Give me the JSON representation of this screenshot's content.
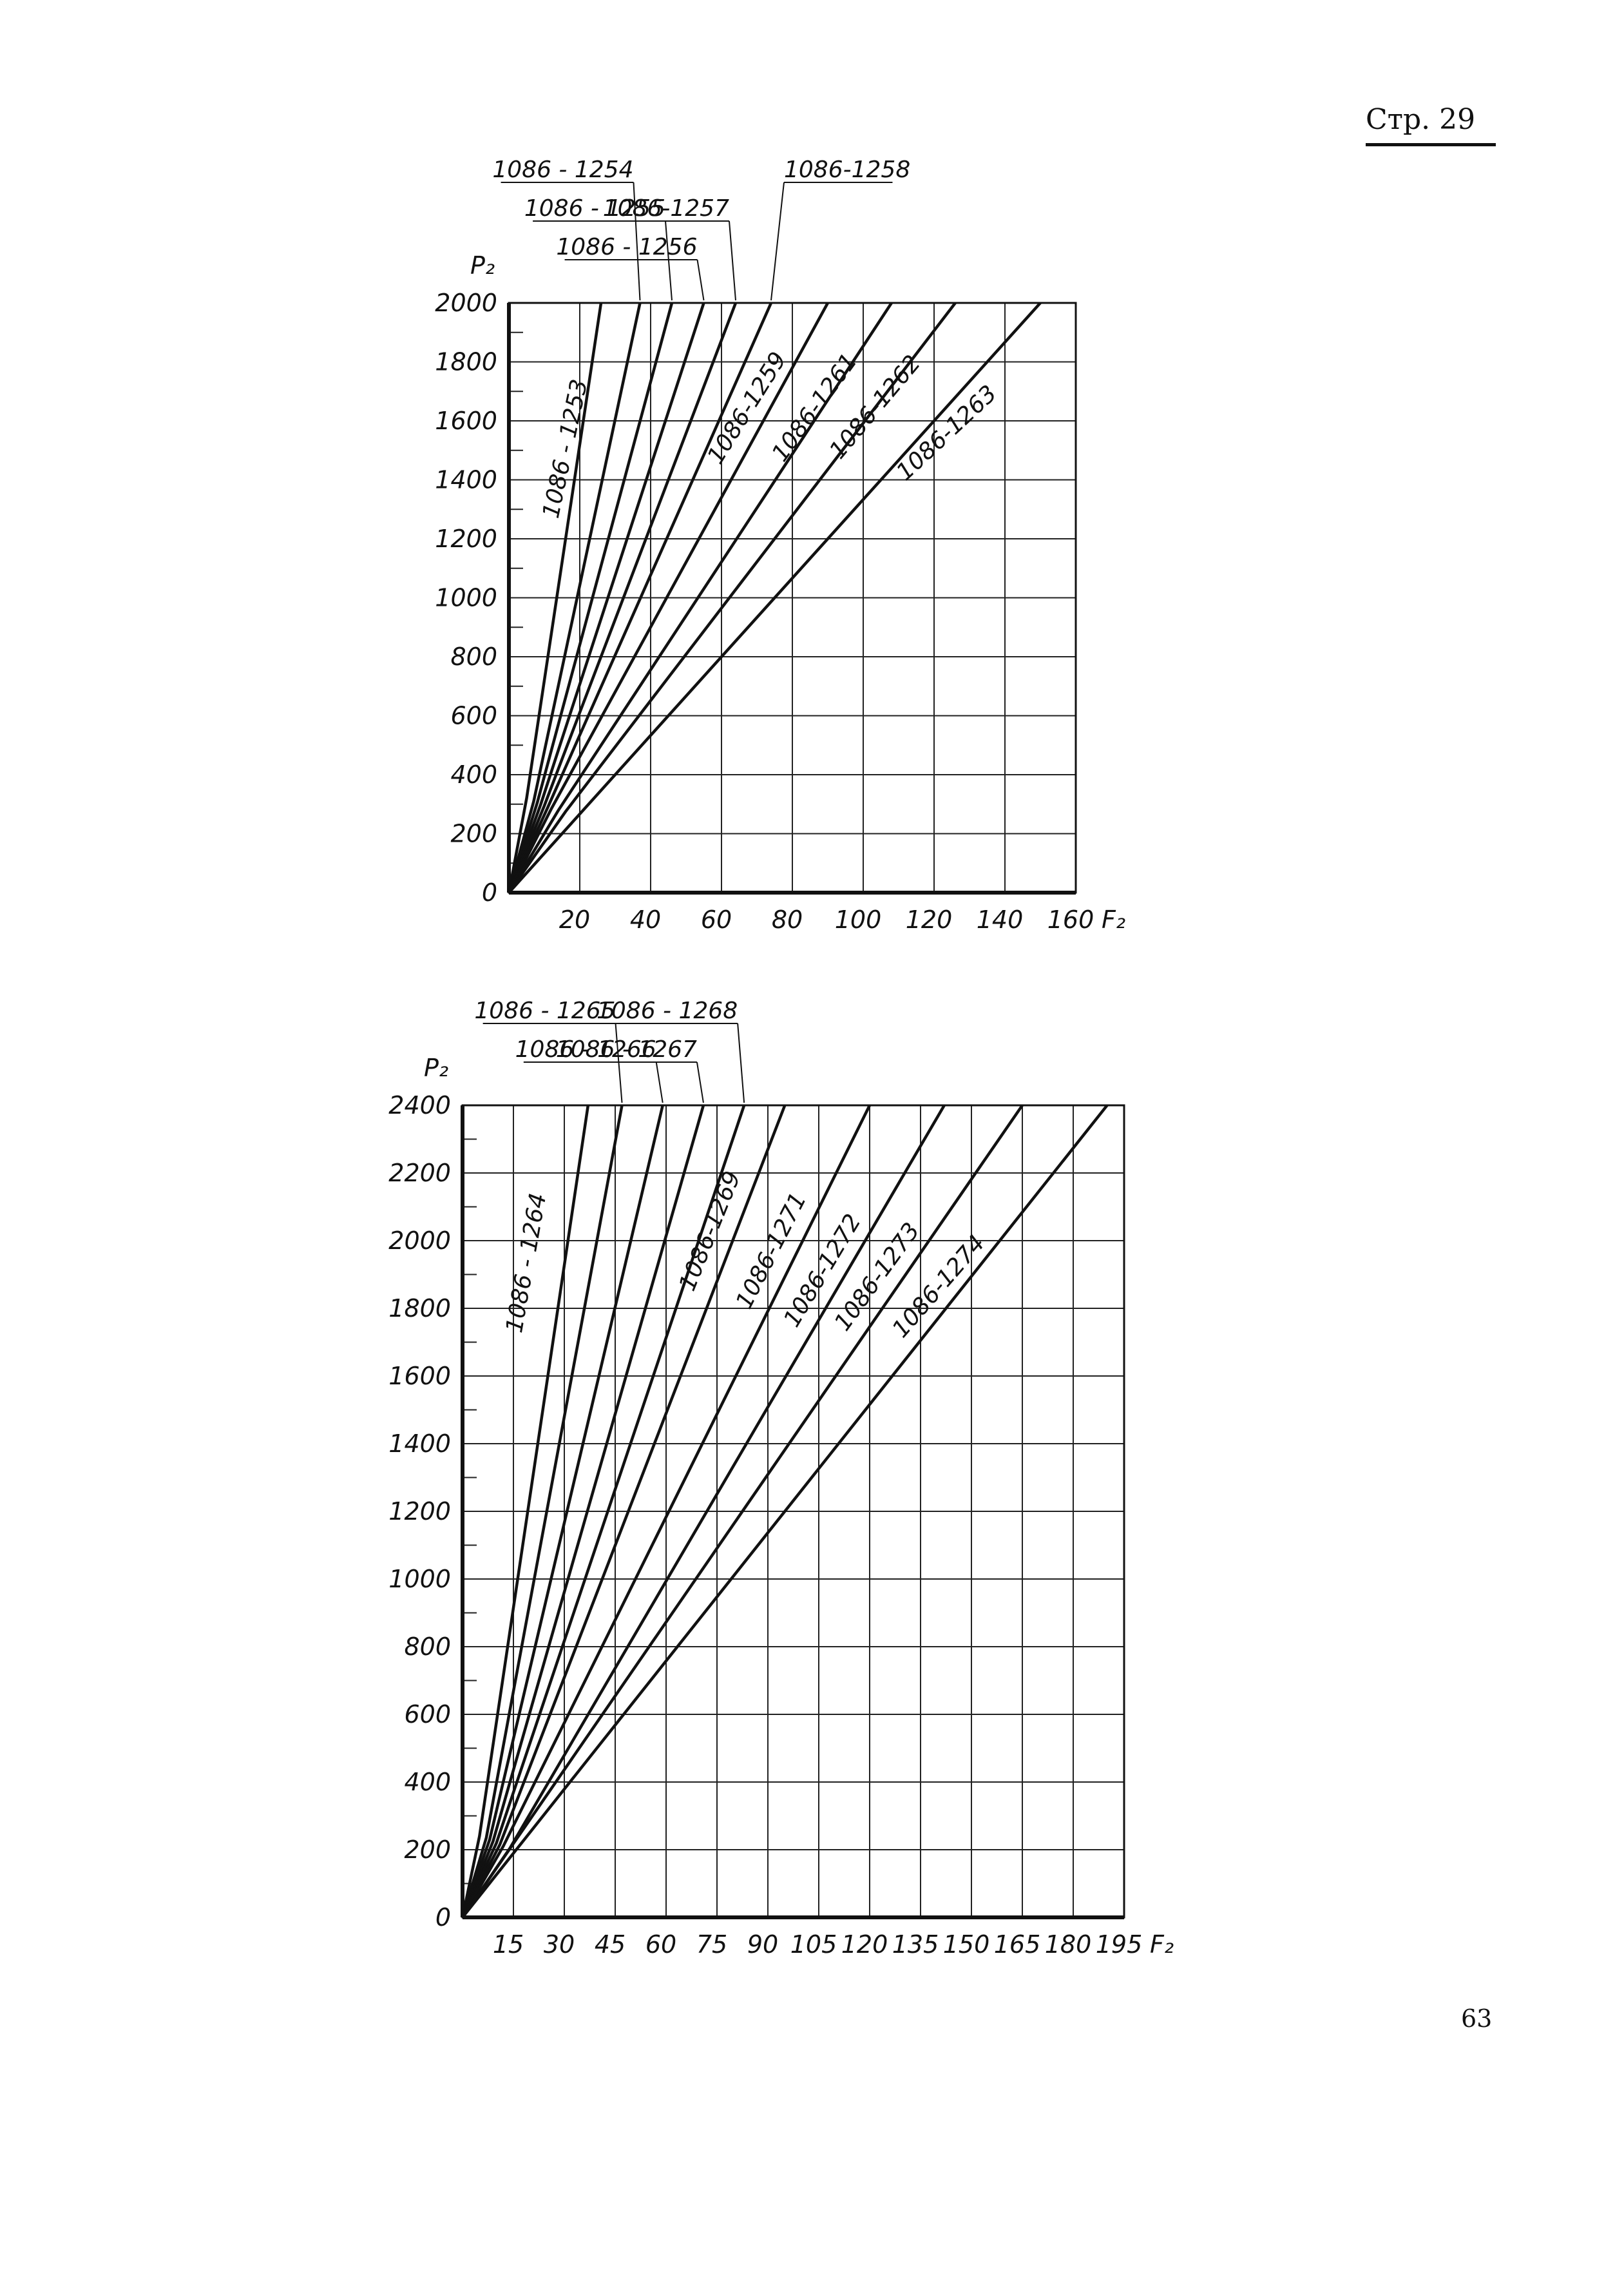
{
  "page": {
    "header": "Стр. 29",
    "number": "63"
  },
  "chart_data": [
    {
      "type": "line",
      "xlabel": "F₂",
      "ylabel": "P₂",
      "xlim": [
        0,
        160
      ],
      "ylim": [
        0,
        2000
      ],
      "x_ticks": [
        20,
        40,
        60,
        80,
        100,
        120,
        140,
        160
      ],
      "y_ticks": [
        0,
        200,
        400,
        600,
        800,
        1000,
        1200,
        1400,
        1600,
        1800,
        2000
      ],
      "grid": true,
      "series": [
        {
          "name": "1086 - 1253",
          "points": [
            [
              0,
              0
            ],
            [
              5,
              320
            ],
            [
              26,
              2000
            ]
          ]
        },
        {
          "name": "1086 - 1254",
          "points": [
            [
              0,
              0
            ],
            [
              7,
              310
            ],
            [
              37,
              2000
            ]
          ]
        },
        {
          "name": "1086 - 1255",
          "points": [
            [
              0,
              0
            ],
            [
              8,
              305
            ],
            [
              46,
              2000
            ]
          ]
        },
        {
          "name": "1086 - 1256",
          "points": [
            [
              0,
              0
            ],
            [
              9,
              300
            ],
            [
              55,
              2000
            ]
          ]
        },
        {
          "name": "1086 - 1257",
          "points": [
            [
              0,
              0
            ],
            [
              10,
              295
            ],
            [
              64,
              2000
            ]
          ]
        },
        {
          "name": "1086 - 1258",
          "points": [
            [
              0,
              0
            ],
            [
              11,
              290
            ],
            [
              74,
              2000
            ]
          ]
        },
        {
          "name": "1086-1259",
          "points": [
            [
              0,
              0
            ],
            [
              12,
              285
            ],
            [
              90,
              2000
            ]
          ]
        },
        {
          "name": "1086-1261",
          "points": [
            [
              0,
              0
            ],
            [
              14,
              280
            ],
            [
              108,
              2000
            ]
          ]
        },
        {
          "name": "1086-1262",
          "points": [
            [
              0,
              0
            ],
            [
              16,
              275
            ],
            [
              126,
              2000
            ]
          ]
        },
        {
          "name": "1086-1263",
          "points": [
            [
              0,
              0
            ],
            [
              150,
              2000
            ]
          ]
        }
      ],
      "labels": [
        {
          "text": "1086 - 1253",
          "at": [
            18,
            1500
          ],
          "angle": -78
        },
        {
          "text": "1086 - 1254",
          "top": true,
          "slot": 3
        },
        {
          "text": "1086 - 1255",
          "top": true,
          "slot": 2
        },
        {
          "text": "1086 - 1256",
          "top": true,
          "slot": 1
        },
        {
          "text": "1086-1257",
          "top": true,
          "slot": 2
        },
        {
          "text": "1086-1258",
          "top": true,
          "slot": 3
        },
        {
          "text": "1086-1259",
          "at": [
            69,
            1630
          ],
          "angle": -58
        },
        {
          "text": "1086-1261",
          "at": [
            88,
            1630
          ],
          "angle": -54
        },
        {
          "text": "1086-1262",
          "at": [
            105,
            1630
          ],
          "angle": -50
        },
        {
          "text": "1086-1263",
          "at": [
            125,
            1540
          ],
          "angle": -43
        }
      ]
    },
    {
      "type": "line",
      "xlabel": "F₂",
      "ylabel": "P₂",
      "xlim": [
        0,
        195
      ],
      "ylim": [
        0,
        2400
      ],
      "x_ticks": [
        15,
        30,
        45,
        60,
        75,
        90,
        105,
        120,
        135,
        150,
        165,
        180,
        195
      ],
      "y_ticks": [
        0,
        200,
        400,
        600,
        800,
        1000,
        1200,
        1400,
        1600,
        1800,
        2000,
        2200,
        2400
      ],
      "grid": true,
      "series": [
        {
          "name": "1086 - 1264",
          "points": [
            [
              0,
              0
            ],
            [
              5,
              240
            ],
            [
              37,
              2400
            ]
          ]
        },
        {
          "name": "1086 - 1265",
          "points": [
            [
              0,
              0
            ],
            [
              7,
              235
            ],
            [
              47,
              2400
            ]
          ]
        },
        {
          "name": "1086 - 1266",
          "points": [
            [
              0,
              0
            ],
            [
              8,
              230
            ],
            [
              59,
              2400
            ]
          ]
        },
        {
          "name": "1086 - 1267",
          "points": [
            [
              0,
              0
            ],
            [
              9,
              225
            ],
            [
              71,
              2400
            ]
          ]
        },
        {
          "name": "1086 - 1268",
          "points": [
            [
              0,
              0
            ],
            [
              10,
              220
            ],
            [
              83,
              2400
            ]
          ]
        },
        {
          "name": "1086 - 1269",
          "points": [
            [
              0,
              0
            ],
            [
              11,
              215
            ],
            [
              95,
              2400
            ]
          ]
        },
        {
          "name": "1086 - 1271",
          "points": [
            [
              0,
              0
            ],
            [
              12,
              210
            ],
            [
              120,
              2400
            ]
          ]
        },
        {
          "name": "1086 - 1272",
          "points": [
            [
              0,
              0
            ],
            [
              14,
              205
            ],
            [
              142,
              2400
            ]
          ]
        },
        {
          "name": "1086 - 1273",
          "points": [
            [
              0,
              0
            ],
            [
              165,
              2400
            ]
          ]
        },
        {
          "name": "1086 - 1274",
          "points": [
            [
              0,
              0
            ],
            [
              190,
              2400
            ]
          ]
        }
      ],
      "labels": [
        {
          "text": "1086 - 1264",
          "at": [
            21,
            1930
          ],
          "angle": -80
        },
        {
          "text": "1086 - 1265",
          "top": true,
          "slot": 2
        },
        {
          "text": "1086 - 1266",
          "top": true,
          "slot": 1
        },
        {
          "text": "1086 - 1267",
          "top": true,
          "slot": 1
        },
        {
          "text": "1086 - 1268",
          "top": true,
          "slot": 2
        },
        {
          "text": "1086-1269",
          "at": [
            75,
            2020
          ],
          "angle": -68
        },
        {
          "text": "1086-1271",
          "at": [
            93,
            1960
          ],
          "angle": -63
        },
        {
          "text": "1086-1272",
          "at": [
            108,
            1900
          ],
          "angle": -59
        },
        {
          "text": "1086-1273",
          "at": [
            124,
            1880
          ],
          "angle": -54
        },
        {
          "text": "1086-1274",
          "at": [
            142,
            1850
          ],
          "angle": -49
        }
      ]
    }
  ]
}
